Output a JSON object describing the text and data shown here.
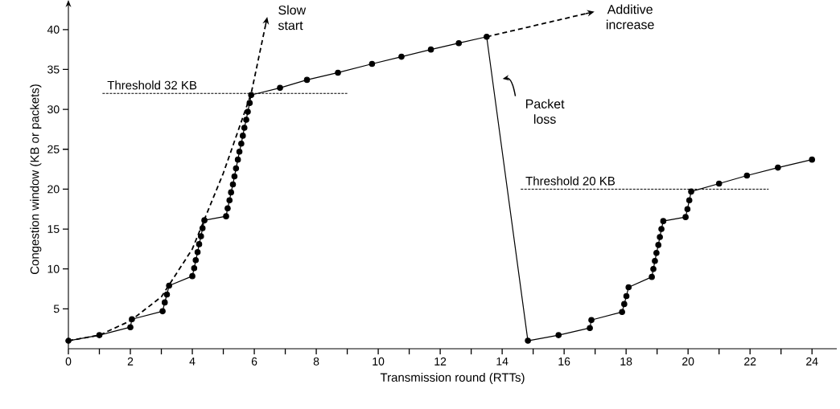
{
  "chart_data": {
    "type": "line",
    "xlabel": "Transmission round (RTTs)",
    "ylabel": "Congestion window  (KB or packets)",
    "xlim": [
      0,
      24.8
    ],
    "ylim": [
      0,
      42.5
    ],
    "xticks": [
      0,
      {
        "value": 1,
        "label": null
      },
      2,
      {
        "value": 3,
        "label": null
      },
      4,
      {
        "value": 5,
        "label": null
      },
      6,
      {
        "value": 7,
        "label": null
      },
      8,
      {
        "value": 9,
        "label": null
      },
      10,
      {
        "value": 11,
        "label": null
      },
      12,
      {
        "value": 13,
        "label": null
      },
      14,
      {
        "value": 15,
        "label": null
      },
      16,
      {
        "value": 17,
        "label": null
      },
      18,
      {
        "value": 19,
        "label": null
      },
      20,
      {
        "value": 21,
        "label": null
      },
      22,
      {
        "value": 23,
        "label": null
      },
      24
    ],
    "yticks": [
      5,
      10,
      15,
      20,
      25,
      30,
      35,
      40
    ],
    "series": [
      {
        "color": "#000000",
        "marker": "circle",
        "line_style": "solid",
        "x": [
          0,
          1,
          2,
          2.05,
          3.04,
          3.11,
          3.18,
          3.25,
          4.0,
          4.06,
          4.11,
          4.17,
          4.22,
          4.28,
          4.33,
          4.39,
          5.09,
          5.14,
          5.2,
          5.25,
          5.31,
          5.36,
          5.41,
          5.47,
          5.52,
          5.58,
          5.63,
          5.68,
          5.74,
          5.79,
          5.85,
          5.9,
          6.83,
          7.7,
          8.7,
          9.8,
          10.75,
          11.7,
          12.6,
          13.5,
          14.83,
          15.82,
          16.83,
          16.88,
          17.87,
          17.94,
          18.01,
          18.08,
          18.83,
          18.88,
          18.93,
          18.98,
          19.04,
          19.09,
          19.14,
          19.2,
          19.92,
          19.98,
          20.04,
          20.1,
          21.0,
          21.9,
          22.9,
          24.0
        ],
        "values": [
          1,
          1.7,
          2.7,
          3.7,
          4.7,
          5.8,
          6.8,
          7.9,
          9.1,
          10.1,
          11.1,
          12.1,
          13.1,
          14.1,
          15.1,
          16.1,
          16.6,
          17.6,
          18.6,
          19.6,
          20.6,
          21.6,
          22.6,
          23.7,
          24.7,
          25.7,
          26.7,
          27.7,
          28.7,
          29.7,
          30.8,
          31.8,
          32.7,
          33.7,
          34.6,
          35.7,
          36.6,
          37.5,
          38.3,
          39.1,
          1.0,
          1.7,
          2.6,
          3.6,
          4.6,
          5.6,
          6.6,
          7.7,
          9.0,
          10.0,
          11.0,
          12.0,
          13.0,
          14.0,
          15.0,
          16.0,
          16.5,
          17.5,
          18.6,
          19.7,
          20.7,
          21.7,
          22.7,
          23.7
        ]
      },
      {
        "color": "#000000",
        "marker": "none",
        "line_style": "dashed",
        "x": [
          0,
          1,
          2,
          3,
          4,
          5,
          5.9,
          6.36
        ],
        "values": [
          1,
          1.7,
          3.5,
          6.5,
          12.5,
          22,
          32,
          40.5
        ]
      },
      {
        "color": "#000000",
        "marker": "none",
        "line_style": "dashed",
        "x": [
          13.5,
          16.7
        ],
        "values": [
          39.1,
          42.0
        ]
      },
      {
        "name": "Threshold 32 KB",
        "color": "#000000",
        "marker": "none",
        "line_style": "dotted",
        "x": [
          1.1,
          9.0
        ],
        "values": [
          32,
          32
        ]
      },
      {
        "name": "Threshold 20 KB",
        "color": "#000000",
        "marker": "none",
        "line_style": "dotted",
        "x": [
          14.6,
          22.6
        ],
        "values": [
          20,
          20
        ]
      }
    ],
    "annotations": [
      {
        "text": "Slow start",
        "x": 6.36,
        "y": 40.5
      },
      {
        "text": "Additive increase",
        "x": 16.7,
        "y": 42.0
      },
      "Packet loss"
    ]
  }
}
